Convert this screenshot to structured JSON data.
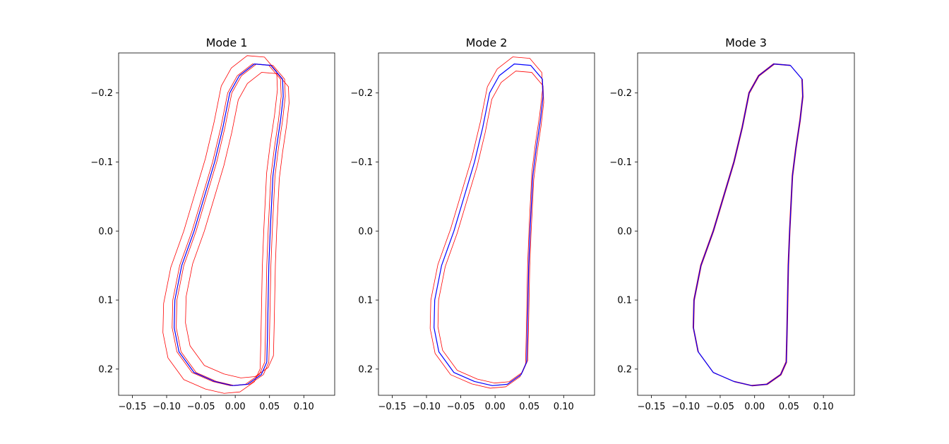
{
  "chart_data": [
    {
      "type": "line",
      "title": "Mode 1",
      "xlim": [
        -0.17,
        0.145
      ],
      "ylim": [
        0.238,
        -0.258
      ],
      "y_inverted": true,
      "xticks": [
        -0.15,
        -0.1,
        -0.05,
        0.0,
        0.05,
        0.1
      ],
      "xtick_labels": [
        "−0.15",
        "−0.10",
        "−0.05",
        "0.00",
        "0.05",
        "0.10"
      ],
      "yticks": [
        -0.2,
        -0.1,
        0.0,
        0.1,
        0.2
      ],
      "ytick_labels": [
        "−0.2",
        "−0.1",
        "0.0",
        "0.1",
        "0.2"
      ],
      "mean_color": "#0000ff",
      "variant_color": "#ff0000",
      "mean": [
        [
          0.006,
          -0.225
        ],
        [
          0.028,
          -0.242
        ],
        [
          0.052,
          -0.24
        ],
        [
          0.069,
          -0.22
        ],
        [
          0.07,
          -0.195
        ],
        [
          0.066,
          -0.16
        ],
        [
          0.06,
          -0.12
        ],
        [
          0.055,
          -0.08
        ],
        [
          0.053,
          -0.04
        ],
        [
          0.051,
          0.0
        ],
        [
          0.049,
          0.05
        ],
        [
          0.048,
          0.1
        ],
        [
          0.047,
          0.15
        ],
        [
          0.046,
          0.19
        ],
        [
          0.038,
          0.208
        ],
        [
          0.018,
          0.222
        ],
        [
          -0.004,
          0.224
        ],
        [
          -0.03,
          0.218
        ],
        [
          -0.06,
          0.205
        ],
        [
          -0.082,
          0.175
        ],
        [
          -0.089,
          0.14
        ],
        [
          -0.088,
          0.1
        ],
        [
          -0.078,
          0.05
        ],
        [
          -0.06,
          0.0
        ],
        [
          -0.045,
          -0.05
        ],
        [
          -0.03,
          -0.1
        ],
        [
          -0.018,
          -0.15
        ],
        [
          -0.008,
          -0.2
        ]
      ],
      "series": [
        {
          "type": "shape",
          "offset": [
            -0.012,
            0.0
          ],
          "scale": 1.05
        },
        {
          "type": "shape",
          "offset": [
            -0.003,
            0.0
          ],
          "scale": 1.0
        },
        {
          "type": "shape",
          "offset": [
            0.003,
            0.0
          ],
          "scale": 1.0
        },
        {
          "type": "shape",
          "offset": [
            0.012,
            0.0
          ],
          "scale": 0.95
        }
      ]
    },
    {
      "type": "line",
      "title": "Mode 2",
      "xlim": [
        -0.17,
        0.145
      ],
      "ylim": [
        0.238,
        -0.258
      ],
      "y_inverted": true,
      "xticks": [
        -0.15,
        -0.1,
        -0.05,
        0.0,
        0.05,
        0.1
      ],
      "xtick_labels": [
        "−0.15",
        "−0.10",
        "−0.05",
        "0.00",
        "0.05",
        "0.10"
      ],
      "yticks": [
        -0.2,
        -0.1,
        0.0,
        0.1,
        0.2
      ],
      "ytick_labels": [
        "−0.2",
        "−0.1",
        "0.0",
        "0.1",
        "0.2"
      ],
      "mean_color": "#0000ff",
      "variant_color": "#ff0000",
      "mean": [
        [
          0.006,
          -0.225
        ],
        [
          0.028,
          -0.242
        ],
        [
          0.052,
          -0.24
        ],
        [
          0.069,
          -0.22
        ],
        [
          0.07,
          -0.195
        ],
        [
          0.066,
          -0.16
        ],
        [
          0.06,
          -0.12
        ],
        [
          0.055,
          -0.08
        ],
        [
          0.053,
          -0.04
        ],
        [
          0.051,
          0.0
        ],
        [
          0.049,
          0.05
        ],
        [
          0.048,
          0.1
        ],
        [
          0.047,
          0.15
        ],
        [
          0.046,
          0.19
        ],
        [
          0.038,
          0.208
        ],
        [
          0.018,
          0.222
        ],
        [
          -0.004,
          0.224
        ],
        [
          -0.03,
          0.218
        ],
        [
          -0.06,
          0.205
        ],
        [
          -0.082,
          0.175
        ],
        [
          -0.089,
          0.14
        ],
        [
          -0.088,
          0.1
        ],
        [
          -0.078,
          0.05
        ],
        [
          -0.06,
          0.0
        ],
        [
          -0.045,
          -0.05
        ],
        [
          -0.03,
          -0.1
        ],
        [
          -0.018,
          -0.15
        ],
        [
          -0.008,
          -0.2
        ]
      ],
      "series": [
        {
          "type": "shape",
          "offset": [
            -0.003,
            -0.003
          ],
          "scale": 1.03
        },
        {
          "type": "shape",
          "offset": [
            0.003,
            0.003
          ],
          "scale": 0.97
        }
      ]
    },
    {
      "type": "line",
      "title": "Mode 3",
      "xlim": [
        -0.17,
        0.145
      ],
      "ylim": [
        0.238,
        -0.258
      ],
      "y_inverted": true,
      "xticks": [
        -0.15,
        -0.1,
        -0.05,
        0.0,
        0.05,
        0.1
      ],
      "xtick_labels": [
        "−0.15",
        "−0.10",
        "−0.05",
        "0.00",
        "0.05",
        "0.10"
      ],
      "yticks": [
        -0.2,
        -0.1,
        0.0,
        0.1,
        0.2
      ],
      "ytick_labels": [
        "−0.2",
        "−0.1",
        "0.0",
        "0.1",
        "0.2"
      ],
      "mean_color": "#0000ff",
      "variant_color": "#ff0000",
      "mean": [
        [
          0.006,
          -0.225
        ],
        [
          0.028,
          -0.242
        ],
        [
          0.052,
          -0.24
        ],
        [
          0.069,
          -0.22
        ],
        [
          0.07,
          -0.195
        ],
        [
          0.066,
          -0.16
        ],
        [
          0.06,
          -0.12
        ],
        [
          0.055,
          -0.08
        ],
        [
          0.053,
          -0.04
        ],
        [
          0.051,
          0.0
        ],
        [
          0.049,
          0.05
        ],
        [
          0.048,
          0.1
        ],
        [
          0.047,
          0.15
        ],
        [
          0.046,
          0.19
        ],
        [
          0.038,
          0.208
        ],
        [
          0.018,
          0.222
        ],
        [
          -0.004,
          0.224
        ],
        [
          -0.03,
          0.218
        ],
        [
          -0.06,
          0.205
        ],
        [
          -0.082,
          0.175
        ],
        [
          -0.089,
          0.14
        ],
        [
          -0.088,
          0.1
        ],
        [
          -0.078,
          0.05
        ],
        [
          -0.06,
          0.0
        ],
        [
          -0.045,
          -0.05
        ],
        [
          -0.03,
          -0.1
        ],
        [
          -0.018,
          -0.15
        ],
        [
          -0.008,
          -0.2
        ]
      ],
      "series": [
        {
          "type": "shape",
          "offset": [
            0.0006,
            0.0005
          ],
          "scale": 1.0
        },
        {
          "type": "shape",
          "offset": [
            -0.0006,
            -0.0005
          ],
          "scale": 1.0
        }
      ]
    }
  ]
}
